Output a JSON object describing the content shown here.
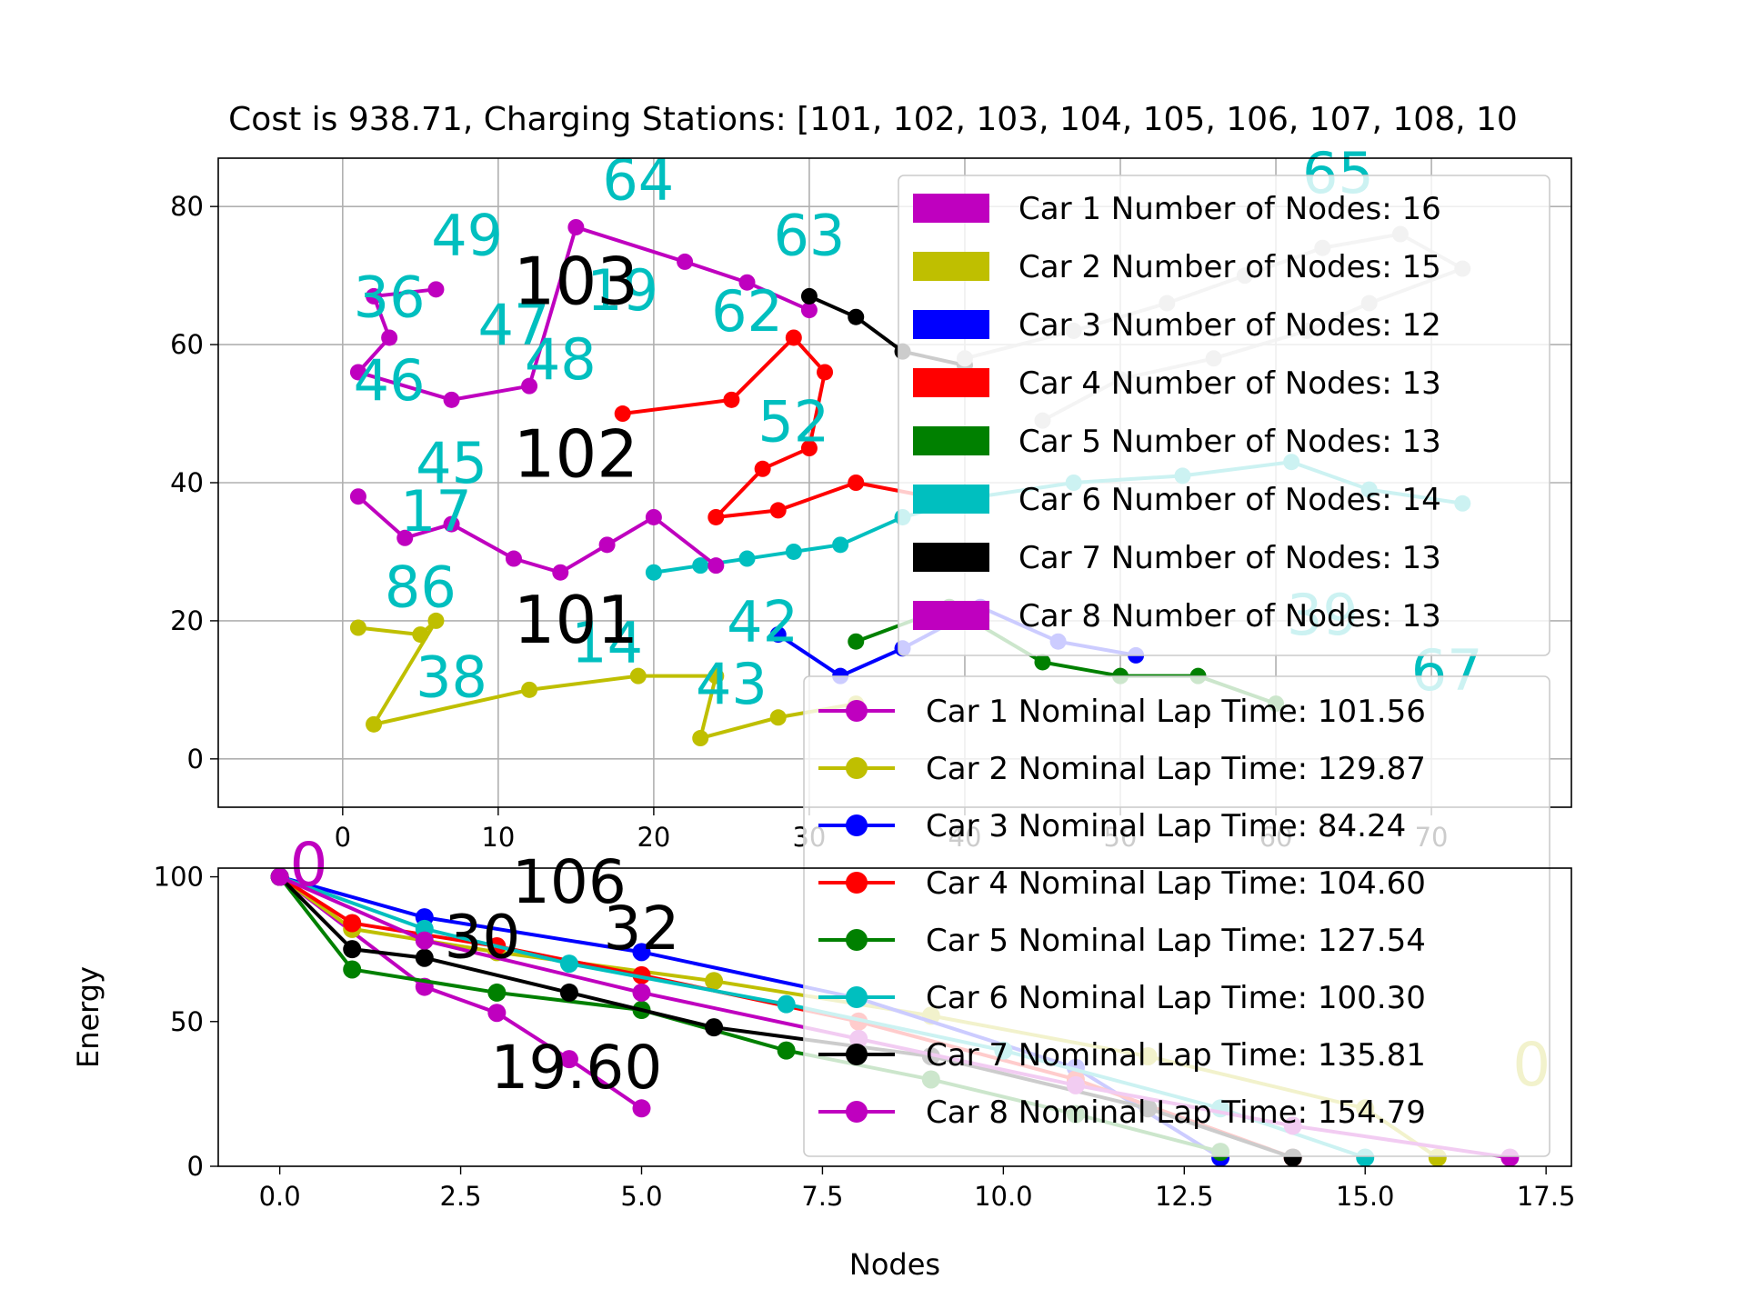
{
  "chart_data": [
    {
      "type": "line",
      "title": "Cost is 938.71, Charging Stations: [101, 102, 103, 104, 105, 106, 107, 108, 10",
      "xlabel": "",
      "ylabel": "",
      "xlim": [
        -8,
        79
      ],
      "ylim": [
        -7,
        87
      ],
      "xticks": [
        "0",
        "10",
        "20",
        "30",
        "40",
        "50",
        "60",
        "70"
      ],
      "yticks": [
        "0",
        "20",
        "40",
        "60",
        "80"
      ],
      "grid": true,
      "legend_position": "upper-right",
      "legend": [
        {
          "label": "Car 1 Number of Nodes: 16",
          "color": "#bf00bf"
        },
        {
          "label": "Car 2 Number of Nodes: 15",
          "color": "#bfbf00"
        },
        {
          "label": "Car 3 Number of Nodes: 12",
          "color": "#0000ff"
        },
        {
          "label": "Car 4 Number of Nodes: 13",
          "color": "#ff0000"
        },
        {
          "label": "Car 5 Number of Nodes: 13",
          "color": "#008000"
        },
        {
          "label": "Car 6 Number of Nodes: 14",
          "color": "#00bfbf"
        },
        {
          "label": "Car 7 Number of Nodes: 13",
          "color": "#000000"
        },
        {
          "label": "Car 8 Number of Nodes: 13",
          "color": "#bf00bf"
        }
      ],
      "stations": [
        {
          "label": "101",
          "x": 15,
          "y": 20
        },
        {
          "label": "102",
          "x": 15,
          "y": 44
        },
        {
          "label": "103",
          "x": 15,
          "y": 69
        }
      ],
      "node_labels": [
        {
          "text": "64",
          "x": 19,
          "y": 81
        },
        {
          "text": "49",
          "x": 8,
          "y": 73
        },
        {
          "text": "36",
          "x": 3,
          "y": 64
        },
        {
          "text": "46",
          "x": 3,
          "y": 52
        },
        {
          "text": "47",
          "x": 11,
          "y": 60
        },
        {
          "text": "48",
          "x": 14,
          "y": 55
        },
        {
          "text": "45",
          "x": 7,
          "y": 40
        },
        {
          "text": "17",
          "x": 6,
          "y": 33
        },
        {
          "text": "86",
          "x": 5,
          "y": 22
        },
        {
          "text": "38",
          "x": 7,
          "y": 9
        },
        {
          "text": "14",
          "x": 17,
          "y": 14
        },
        {
          "text": "43",
          "x": 25,
          "y": 8
        },
        {
          "text": "42",
          "x": 27,
          "y": 17
        },
        {
          "text": "63",
          "x": 30,
          "y": 73
        },
        {
          "text": "62",
          "x": 26,
          "y": 62
        },
        {
          "text": "52",
          "x": 29,
          "y": 46
        },
        {
          "text": "19",
          "x": 18,
          "y": 65
        },
        {
          "text": "65",
          "x": 64,
          "y": 82
        },
        {
          "text": "67",
          "x": 71,
          "y": 10
        },
        {
          "text": "39",
          "x": 63,
          "y": 18
        }
      ],
      "series": [
        {
          "name": "Car 1",
          "color": "#bf00bf",
          "x": [
            6,
            2,
            3,
            1,
            7,
            12,
            15,
            22,
            26,
            30
          ],
          "y": [
            68,
            67,
            61,
            56,
            52,
            54,
            77,
            72,
            69,
            65
          ]
        },
        {
          "name": "Car 2",
          "color": "#bfbf00",
          "x": [
            1,
            5,
            6,
            2,
            12,
            19,
            24,
            23,
            28,
            33
          ],
          "y": [
            19,
            18,
            20,
            5,
            10,
            12,
            12,
            3,
            6,
            8
          ]
        },
        {
          "name": "Car 3",
          "color": "#0000ff",
          "x": [
            28,
            32,
            36,
            41,
            46,
            51
          ],
          "y": [
            18,
            12,
            16,
            22,
            17,
            15
          ]
        },
        {
          "name": "Car 4",
          "color": "#ff0000",
          "x": [
            18,
            25,
            29,
            31,
            30,
            27,
            24,
            28,
            33,
            40
          ],
          "y": [
            50,
            52,
            61,
            56,
            45,
            42,
            35,
            36,
            40,
            37
          ]
        },
        {
          "name": "Car 5",
          "color": "#008000",
          "x": [
            33,
            39,
            45,
            50,
            55,
            60
          ],
          "y": [
            17,
            22,
            14,
            12,
            12,
            8
          ]
        },
        {
          "name": "Car 6",
          "color": "#00bfbf",
          "x": [
            20,
            23,
            26,
            29,
            32,
            36,
            41,
            47,
            54,
            61,
            66,
            72
          ],
          "y": [
            27,
            28,
            29,
            30,
            31,
            35,
            38,
            40,
            41,
            43,
            39,
            37
          ]
        },
        {
          "name": "Car 7",
          "color": "#000000",
          "x": [
            30,
            33,
            36,
            40
          ],
          "y": [
            67,
            64,
            59,
            57
          ]
        },
        {
          "name": "Car 8",
          "color": "#bf00bf",
          "x": [
            1,
            4,
            7,
            11,
            14,
            17,
            20,
            24
          ],
          "y": [
            38,
            32,
            34,
            29,
            27,
            31,
            35,
            28
          ]
        },
        {
          "name": "Car 9",
          "color": "#bfbfbf",
          "x": [
            40,
            47,
            53,
            58,
            63,
            68,
            72,
            66,
            62,
            56,
            50,
            45
          ],
          "y": [
            58,
            62,
            66,
            70,
            74,
            76,
            71,
            66,
            62,
            58,
            55,
            49
          ]
        }
      ]
    },
    {
      "type": "line",
      "title": "",
      "xlabel": "Nodes",
      "ylabel": "Energy",
      "xlim": [
        -0.85,
        17.85
      ],
      "ylim": [
        0,
        103
      ],
      "xticks": [
        "0.0",
        "2.5",
        "5.0",
        "7.5",
        "10.0",
        "12.5",
        "15.0",
        "17.5"
      ],
      "yticks": [
        "0",
        "50",
        "100"
      ],
      "grid": false,
      "legend_position": "lower-right",
      "legend": [
        {
          "label": "Car 1 Nominal Lap Time: 101.56",
          "color": "#bf00bf"
        },
        {
          "label": "Car 2 Nominal Lap Time: 129.87",
          "color": "#bfbf00"
        },
        {
          "label": "Car 3 Nominal Lap Time: 84.24",
          "color": "#0000ff"
        },
        {
          "label": "Car 4 Nominal Lap Time: 104.60",
          "color": "#ff0000"
        },
        {
          "label": "Car 5 Nominal Lap Time: 127.54",
          "color": "#008000"
        },
        {
          "label": "Car 6 Nominal Lap Time: 100.30",
          "color": "#00bfbf"
        },
        {
          "label": "Car 7 Nominal Lap Time: 135.81",
          "color": "#000000"
        },
        {
          "label": "Car 8 Nominal Lap Time: 154.79",
          "color": "#bf00bf"
        }
      ],
      "big_labels": [
        {
          "text": "0",
          "x": 0.4,
          "y": 97,
          "color": "#bf00bf"
        },
        {
          "text": "106",
          "x": 4.0,
          "y": 91,
          "color": "#000000"
        },
        {
          "text": "32",
          "x": 5.0,
          "y": 75,
          "color": "#000000"
        },
        {
          "text": "30",
          "x": 2.8,
          "y": 72,
          "color": "#000000"
        },
        {
          "text": "19.60",
          "x": 4.1,
          "y": 27,
          "color": "#000000"
        },
        {
          "text": "0",
          "x": 17.3,
          "y": 28,
          "color": "#bfbf00"
        }
      ],
      "series": [
        {
          "name": "Car 1",
          "color": "#bf00bf",
          "x": [
            0,
            2,
            3,
            4,
            5
          ],
          "y": [
            100,
            62,
            53,
            37,
            20
          ]
        },
        {
          "name": "Car 2",
          "color": "#bfbf00",
          "x": [
            0,
            1,
            3,
            6,
            9,
            12,
            15,
            16
          ],
          "y": [
            100,
            82,
            74,
            64,
            52,
            38,
            20,
            3
          ]
        },
        {
          "name": "Car 3",
          "color": "#0000ff",
          "x": [
            0,
            2,
            5,
            8,
            11,
            13
          ],
          "y": [
            100,
            86,
            74,
            58,
            34,
            3
          ]
        },
        {
          "name": "Car 4",
          "color": "#ff0000",
          "x": [
            0,
            1,
            3,
            5,
            8,
            11,
            14
          ],
          "y": [
            100,
            84,
            76,
            66,
            50,
            30,
            3
          ]
        },
        {
          "name": "Car 5",
          "color": "#008000",
          "x": [
            0,
            1,
            3,
            5,
            7,
            9,
            11,
            13
          ],
          "y": [
            100,
            68,
            60,
            54,
            40,
            30,
            18,
            5
          ]
        },
        {
          "name": "Car 6",
          "color": "#00bfbf",
          "x": [
            0,
            2,
            4,
            7,
            10,
            13,
            15
          ],
          "y": [
            100,
            82,
            70,
            56,
            40,
            20,
            3
          ]
        },
        {
          "name": "Car 7",
          "color": "#000000",
          "x": [
            0,
            1,
            2,
            4,
            6,
            9,
            12,
            14
          ],
          "y": [
            100,
            75,
            72,
            60,
            48,
            38,
            20,
            3
          ]
        },
        {
          "name": "Car 8",
          "color": "#bf00bf",
          "x": [
            0,
            2,
            5,
            8,
            11,
            14,
            17
          ],
          "y": [
            100,
            78,
            60,
            44,
            28,
            14,
            3
          ]
        }
      ]
    }
  ]
}
